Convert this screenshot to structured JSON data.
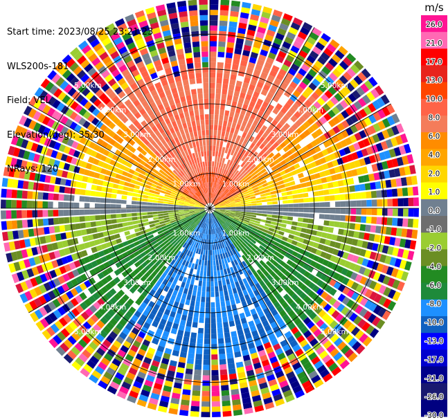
{
  "header": {
    "start_time": "Start time: 2023/08/25 23:21:23",
    "instrument": "WLS200s-181",
    "field": "Field: VEL",
    "elevation": "Elevation(deg): 35.30",
    "nrays": "NRays: 120"
  },
  "colorbar": {
    "unit": "m/s",
    "ticks": [
      "26.0",
      "21.0",
      "17.0",
      "13.0",
      "10.0",
      "8.0",
      "6.0",
      "4.0",
      "2.0",
      "1.0",
      "0.0",
      "-1.0",
      "-2.0",
      "-4.0",
      "-6.0",
      "-8.0",
      "-10.0",
      "-13.0",
      "-17.0",
      "-21.0",
      "-26.0",
      "-30.0"
    ],
    "colors": [
      "#ff1493",
      "#ff69b4",
      "#ff0000",
      "#e8231c",
      "#ff4500",
      "#ff6347",
      "#f47c5a",
      "#ff8c00",
      "#ffa500",
      "#ffd700",
      "#ffff00",
      "#708090",
      "#6e6e6e",
      "#9acd32",
      "#6b8e23",
      "#228b22",
      "#1e8a3a",
      "#1e90ff",
      "#1060c0",
      "#0000ff",
      "#0000cd",
      "#00008b",
      "#191970",
      "#000080"
    ]
  },
  "range_rings": [
    {
      "label": "1.00km"
    },
    {
      "label": "2.00km"
    },
    {
      "label": "3.00km"
    },
    {
      "label": "4.00km"
    },
    {
      "label": "5.00km"
    }
  ],
  "range_max_km": 6.0,
  "rays": 120
}
